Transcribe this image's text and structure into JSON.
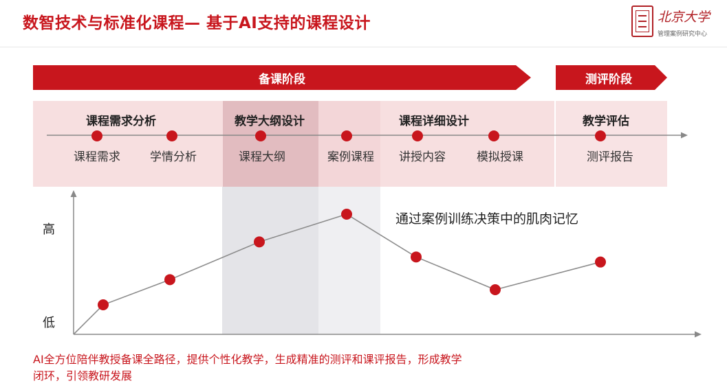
{
  "title": "数智技术与标准化课程— 基于AI支持的课程设计",
  "logo": {
    "name": "北京大学",
    "sub": "管理案例研究中心"
  },
  "phases": {
    "prep": "备课阶段",
    "eval": "测评阶段"
  },
  "stages": [
    {
      "label": "课程需求分析"
    },
    {
      "label": "教学大纲设计"
    },
    {
      "label": "课程详细设计"
    },
    {
      "label": "教学评估"
    }
  ],
  "steps": [
    {
      "label": "课程需求"
    },
    {
      "label": "学情分析"
    },
    {
      "label": "课程大纲"
    },
    {
      "label": "案例课程"
    },
    {
      "label": "讲授内容"
    },
    {
      "label": "模拟授课"
    },
    {
      "label": "测评报告"
    }
  ],
  "chart_data": {
    "type": "line",
    "y_axis_labels": {
      "high": "高",
      "low": "低"
    },
    "points": [
      {
        "step": "课程需求",
        "level": 0.28
      },
      {
        "step": "学情分析",
        "level": 0.48
      },
      {
        "step": "课程大纲",
        "level": 0.78
      },
      {
        "step": "案例课程",
        "level": 1.0
      },
      {
        "step": "讲授内容",
        "level": 0.66
      },
      {
        "step": "模拟授课",
        "level": 0.4
      },
      {
        "step": "测评报告",
        "level": 0.62
      }
    ],
    "annotation": "通过案例训练决策中的肌肉记忆"
  },
  "footer": {
    "line1": "AI全方位陪伴教授备课全路径，提供个性化教学，生成精准的测评和课评报告，形成教学",
    "line2": "闭环，引领教研发展"
  },
  "colors": {
    "accent": "#c8161d",
    "line": "#8c8c8c",
    "axis": "#888888"
  }
}
